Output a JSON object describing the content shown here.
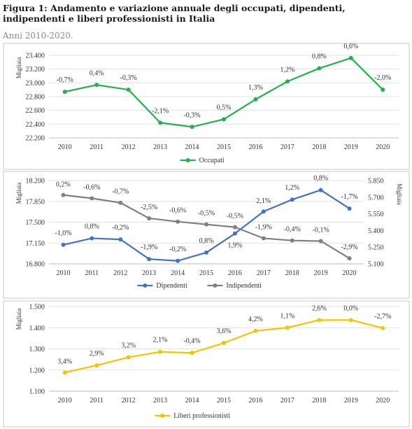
{
  "figure": {
    "title": "Figura 1: Andamento e variazione annuale degli occupati, dipendenti, indipendenti e liberi professionisti in Italia",
    "subtitle": "Anni 2010-2020."
  },
  "chart_data": [
    {
      "type": "line",
      "ylabel": "Migliaia",
      "ylim": [
        22200,
        23400
      ],
      "yticks": [
        "22.200",
        "22.400",
        "22.600",
        "22.800",
        "23.000",
        "23.200",
        "23.400"
      ],
      "categories": [
        "2010",
        "2011",
        "2012",
        "2013",
        "2014",
        "2015",
        "2016",
        "2017",
        "2018",
        "2019",
        "2020"
      ],
      "series": [
        {
          "name": "Occupati",
          "color": "#22b14c",
          "values": [
            22870,
            22970,
            22900,
            22420,
            22360,
            22470,
            22760,
            23020,
            23210,
            23360,
            22900
          ],
          "labels": [
            "-0,7%",
            "0,4%",
            "-0,3%",
            "-2,1%",
            "-0,3%",
            "0,5%",
            "1,3%",
            "1,2%",
            "0,8%",
            "0,6%",
            "-2,0%"
          ]
        }
      ],
      "legend": "bottom"
    },
    {
      "type": "line",
      "ylabel": "Migliaia",
      "ylabel_right": "Migliaia",
      "ylim": [
        16800,
        18200
      ],
      "yticks": [
        "16.800",
        "17.150",
        "17.500",
        "17.850",
        "18.200"
      ],
      "ylim_right": [
        5100,
        5850
      ],
      "yticks_right": [
        "5.100",
        "5.250",
        "5.400",
        "5.550",
        "5.700",
        "5.850"
      ],
      "categories": [
        "2010",
        "2011",
        "2012",
        "2013",
        "2014",
        "2015",
        "2016",
        "2017",
        "2018",
        "2019",
        "2020"
      ],
      "series": [
        {
          "name": "Dipendenti",
          "axis": "left",
          "color": "#4472c4",
          "values": [
            17120,
            17230,
            17210,
            16880,
            16850,
            16990,
            17310,
            17680,
            17880,
            18040,
            17730
          ],
          "labels": [
            "-1,0%",
            "0,8%",
            "-0,2%",
            "-1,9%",
            "-0,2%",
            "0,8%",
            "1,9%",
            "2,1%",
            "1,2%",
            "0,8%",
            "-1,7%"
          ]
        },
        {
          "name": "Indipendenti",
          "axis": "right",
          "color": "#808080",
          "values": [
            5720,
            5690,
            5650,
            5510,
            5480,
            5455,
            5430,
            5330,
            5310,
            5305,
            5150
          ],
          "labels": [
            "0,2%",
            "-0,6%",
            "-0,7%",
            "-2,5%",
            "-0,6%",
            "-0,5%",
            "-0,5%",
            "-1,9%",
            "-0,4%",
            "-0,1%",
            "-2,9%"
          ]
        }
      ],
      "legend": "bottom"
    },
    {
      "type": "line",
      "ylabel": "Migliaia",
      "ylim": [
        1100,
        1500
      ],
      "yticks": [
        "1.100",
        "1.200",
        "1.300",
        "1.400",
        "1.500"
      ],
      "categories": [
        "2010",
        "2011",
        "2012",
        "2013",
        "2014",
        "2015",
        "2016",
        "2017",
        "2018",
        "2019",
        "2020"
      ],
      "series": [
        {
          "name": "Liberi professionisti",
          "color": "#f5c400",
          "values": [
            1188,
            1222,
            1260,
            1286,
            1281,
            1328,
            1385,
            1400,
            1436,
            1436,
            1398
          ],
          "labels": [
            "3,4%",
            "2,9%",
            "3,2%",
            "2,1%",
            "-0,4%",
            "3,6%",
            "4,2%",
            "1,1%",
            "2,6%",
            "0,0%",
            "-2,7%"
          ]
        }
      ],
      "legend": "bottom"
    }
  ]
}
